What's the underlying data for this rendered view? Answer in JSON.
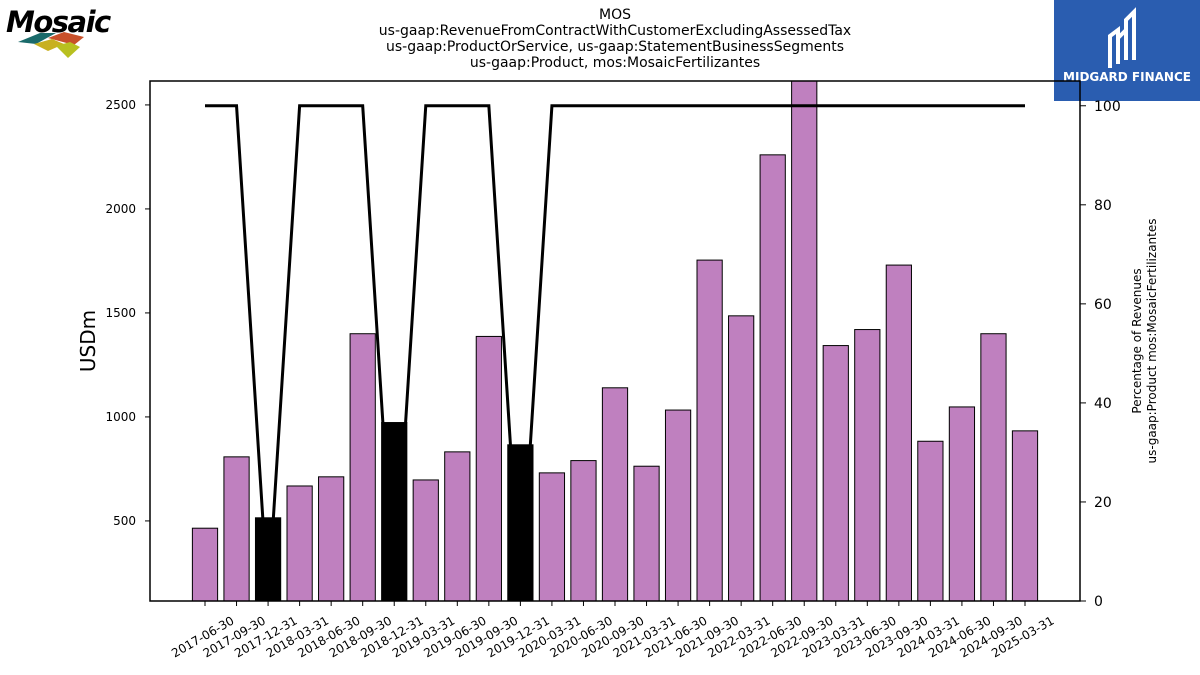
{
  "title_lines": [
    "MOS",
    "us-gaap:RevenueFromContractWithCustomerExcludingAssessedTax",
    "us-gaap:ProductOrService, us-gaap:StatementBusinessSegments",
    "us-gaap:Product, mos:MosaicFertilizantes"
  ],
  "logos": {
    "left_text": "Mosaic",
    "right_text": "MIDGARD FINANCE"
  },
  "colors": {
    "bar_default": "#bf80bf",
    "bar_highlight": "#000000",
    "line": "#000000",
    "logo_right_bg": "#2a5db0"
  },
  "chart_data": {
    "type": "bar",
    "ylabel": "USDm",
    "ylabel_right": [
      "Percentage of Revenues",
      "us-gaap:Product mos:MosaicFertilizantes"
    ],
    "ylim": [
      115,
      2615
    ],
    "yticks": [
      500,
      1000,
      1500,
      2000,
      2500
    ],
    "ylim_right": [
      0,
      105
    ],
    "yticks_right": [
      0,
      20,
      40,
      60,
      80,
      100
    ],
    "categories": [
      "2017-06-30",
      "2017-09-30",
      "2017-12-31",
      "2018-03-31",
      "2018-06-30",
      "2018-09-30",
      "2018-12-31",
      "2019-03-31",
      "2019-06-30",
      "2019-09-30",
      "2019-12-31",
      "2020-03-31",
      "2020-06-30",
      "2020-09-30",
      "2021-03-31",
      "2021-06-30",
      "2021-09-30",
      "2022-03-31",
      "2022-06-30",
      "2022-09-30",
      "2023-03-31",
      "2023-06-30",
      "2023-09-30",
      "2024-03-31",
      "2024-06-30",
      "2024-09-30",
      "2025-03-31"
    ],
    "series": [
      {
        "values": [
          465,
          808,
          515,
          668,
          712,
          1400,
          973,
          697,
          832,
          1387,
          866,
          731,
          790,
          1140,
          763,
          1033,
          1754,
          1486,
          2260,
          2650,
          1343,
          1420,
          1730,
          883,
          1048,
          1400,
          933
        ],
        "highlight": [
          false,
          false,
          true,
          false,
          false,
          false,
          true,
          false,
          false,
          false,
          true,
          false,
          false,
          false,
          false,
          false,
          false,
          false,
          false,
          false,
          false,
          false,
          false,
          false,
          false,
          false,
          false
        ]
      },
      {
        "axis": "right",
        "type": "line",
        "values": [
          100,
          100,
          0,
          100,
          100,
          100,
          0,
          100,
          100,
          100,
          0,
          100,
          100,
          100,
          100,
          100,
          100,
          100,
          100,
          100,
          100,
          100,
          100,
          100,
          100,
          100,
          100
        ]
      }
    ]
  }
}
